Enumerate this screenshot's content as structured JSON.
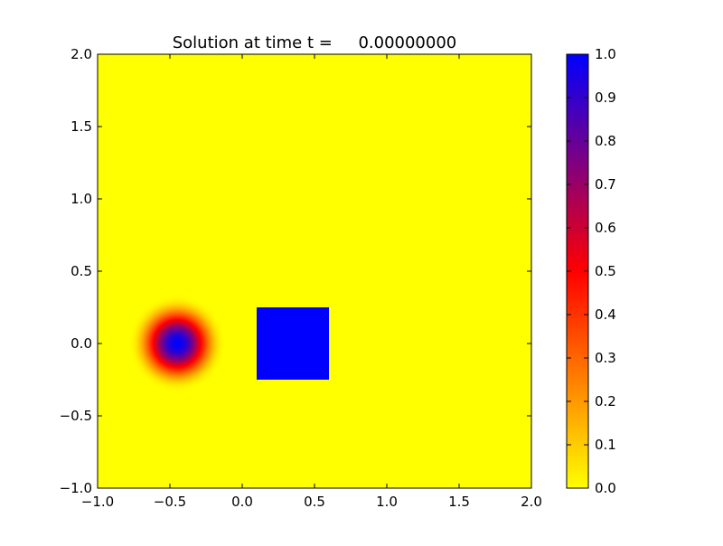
{
  "chart_data": {
    "type": "heatmap",
    "title": "Solution at time t =     0.00000000",
    "xlabel": "",
    "ylabel": "",
    "xlim": [
      -1.0,
      2.0
    ],
    "ylim": [
      -1.0,
      2.0
    ],
    "x_ticks": [
      "−1.0",
      "−0.5",
      "0.0",
      "0.5",
      "1.0",
      "1.5",
      "2.0"
    ],
    "y_ticks": [
      "−1.0",
      "−0.5",
      "0.0",
      "0.5",
      "1.0",
      "1.5",
      "2.0"
    ],
    "x_tick_values": [
      -1.0,
      -0.5,
      0.0,
      0.5,
      1.0,
      1.5,
      2.0
    ],
    "y_tick_values": [
      -1.0,
      -0.5,
      0.0,
      0.5,
      1.0,
      1.5,
      2.0
    ],
    "grid": false,
    "field": {
      "background_value": 0.0,
      "shapes": [
        {
          "kind": "smooth-circle",
          "center": [
            -0.45,
            0.0
          ],
          "radius": 0.33,
          "peak_value": 1.0
        },
        {
          "kind": "square",
          "x_range": [
            0.1,
            0.6
          ],
          "y_range": [
            -0.25,
            0.25
          ],
          "value": 1.0
        }
      ]
    },
    "colorbar": {
      "range": [
        0.0,
        1.0
      ],
      "ticks": [
        "0.0",
        "0.1",
        "0.2",
        "0.3",
        "0.4",
        "0.5",
        "0.6",
        "0.7",
        "0.8",
        "0.9",
        "1.0"
      ],
      "tick_values": [
        0.0,
        0.1,
        0.2,
        0.3,
        0.4,
        0.5,
        0.6,
        0.7,
        0.8,
        0.9,
        1.0
      ],
      "colormap_stops": [
        {
          "value": 0.0,
          "color": "#ffff00"
        },
        {
          "value": 0.5,
          "color": "#ff0000"
        },
        {
          "value": 1.0,
          "color": "#0000ff"
        }
      ]
    }
  }
}
